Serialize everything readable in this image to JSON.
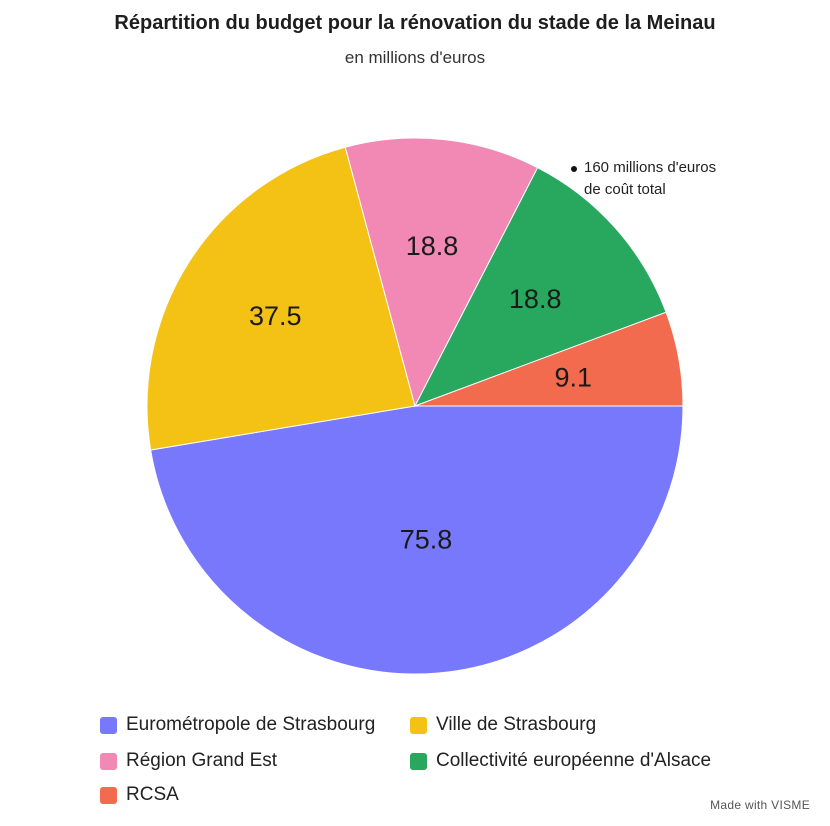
{
  "chart_data": {
    "type": "pie",
    "title": "Répartition du budget pour la rénovation du stade de la Meinau",
    "subtitle": "en millions d'euros",
    "categories": [
      "Eurométropole de Strasbourg",
      "Ville de Strasbourg",
      "Région Grand Est",
      "Collectivité européenne d'Alsace",
      "RCSA"
    ],
    "values": [
      75.8,
      37.5,
      18.8,
      18.8,
      9.1
    ],
    "value_labels": [
      "75.8",
      "37.5",
      "18.8",
      "18.8",
      "9.1"
    ],
    "colors": [
      "#7878fd",
      "#f3c214",
      "#f288b4",
      "#27a85e",
      "#f26b4f"
    ],
    "annotation": [
      "160 millions d'euros",
      "de coût total"
    ],
    "legend_position": "bottom"
  },
  "credit": "Made with VISME"
}
